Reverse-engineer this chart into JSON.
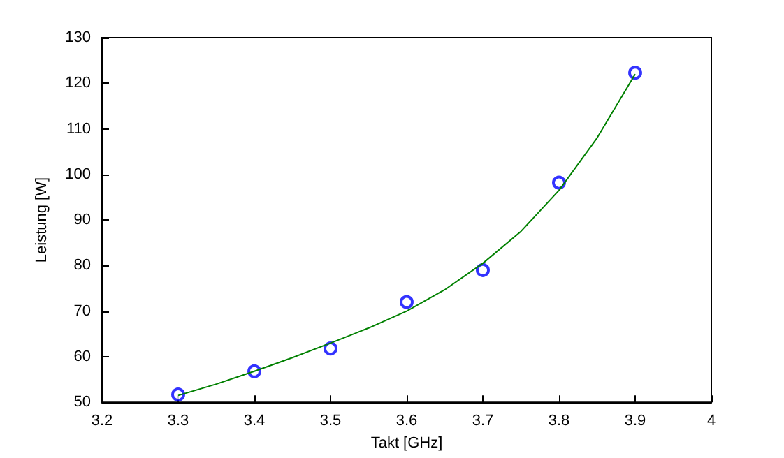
{
  "chart_data": {
    "type": "scatter",
    "xlabel": "Takt [GHz]",
    "ylabel": "Leistung [W]",
    "marker": "circle",
    "xlim": [
      3.2,
      4
    ],
    "xticks": [
      {
        "value": 3.2,
        "label": "3.2"
      },
      {
        "value": 3.3,
        "label": "3.3"
      },
      {
        "value": 3.4,
        "label": "3.4"
      },
      {
        "value": 3.5,
        "label": "3.5"
      },
      {
        "value": 3.6,
        "label": "3.6"
      },
      {
        "value": 3.7,
        "label": "3.7"
      },
      {
        "value": 3.8,
        "label": "3.8"
      },
      {
        "value": 3.9,
        "label": "3.9"
      },
      {
        "value": 4,
        "label": "4"
      }
    ],
    "ylim": [
      50,
      130
    ],
    "yticks": [
      50,
      60,
      70,
      80,
      90,
      100,
      110,
      120,
      130
    ],
    "series": [
      {
        "color": "#0000ff",
        "x": [
          3.3,
          3.4,
          3.5,
          3.6,
          3.7,
          3.8,
          3.9
        ],
        "values": [
          51.7,
          56.8,
          61.8,
          72,
          79,
          98.2,
          122.3
        ]
      },
      {
        "type": "line",
        "color": "#008000",
        "marker": "none",
        "x": [
          3.3,
          3.35,
          3.4,
          3.45,
          3.5,
          3.55,
          3.6,
          3.65,
          3.7,
          3.75,
          3.8,
          3.85,
          3.9
        ],
        "values": [
          51.5,
          54,
          56.8,
          59.8,
          63,
          66.3,
          70,
          74.7,
          80.5,
          87.5,
          96.5,
          108,
          122
        ]
      }
    ]
  }
}
